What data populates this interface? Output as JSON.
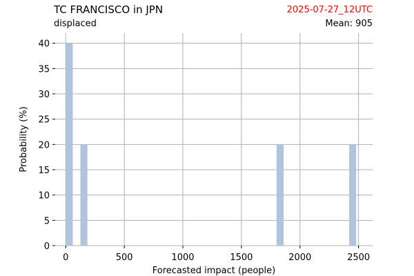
{
  "header": {
    "title": "TC FRANCISCO in JPN",
    "subtitle": "displaced",
    "timestamp": "2025-07-27_12UTC",
    "mean_label": "Mean:",
    "mean_value": "905"
  },
  "colors": {
    "bar": "#b0c4de",
    "grid": "#b0b0b0",
    "timestamp": "#ff0000"
  },
  "chart_data": {
    "type": "bar",
    "title": "TC FRANCISCO in JPN",
    "xlabel": "Forecasted impact (people)",
    "ylabel": "Probability (%)",
    "xlim": [
      -90,
      2620
    ],
    "ylim": [
      0,
      42
    ],
    "xticks": [
      0,
      500,
      1000,
      1500,
      2000,
      2500
    ],
    "yticks": [
      0,
      5,
      10,
      15,
      20,
      25,
      30,
      35,
      40
    ],
    "bin_width": 60,
    "bars": [
      {
        "x_start": 0,
        "x_end": 60,
        "value": 40
      },
      {
        "x_start": 125,
        "x_end": 185,
        "value": 20
      },
      {
        "x_start": 1800,
        "x_end": 1860,
        "value": 20
      },
      {
        "x_start": 2420,
        "x_end": 2480,
        "value": 20
      }
    ],
    "grid": true
  }
}
